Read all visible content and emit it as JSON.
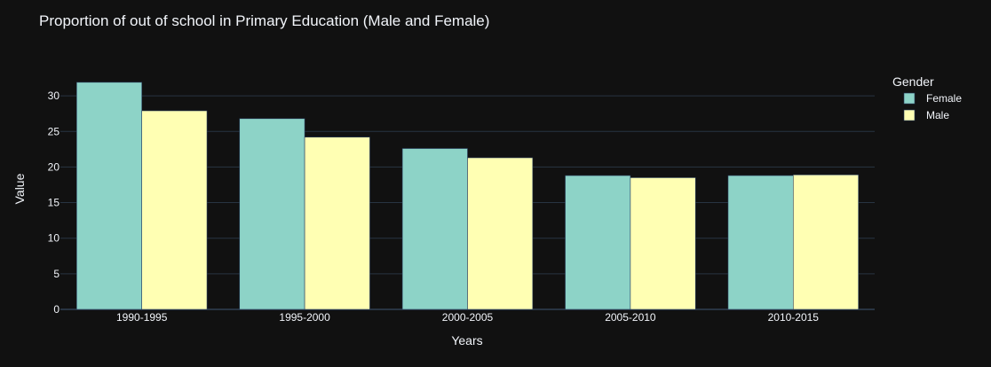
{
  "chart_data": {
    "type": "bar",
    "title": "Proportion of out of school in Primary Education (Male and Female)",
    "xlabel": "Years",
    "ylabel": "Value",
    "categories": [
      "1990-1995",
      "1995-2000",
      "2000-2005",
      "2005-2010",
      "2010-2015"
    ],
    "ylim": [
      0,
      33.5
    ],
    "yticks": [
      0,
      5,
      10,
      15,
      20,
      25,
      30
    ],
    "grid": true,
    "legend": {
      "title": "Gender",
      "placement": "top-right"
    },
    "series": [
      {
        "name": "Female",
        "color": "#8dd3c7",
        "values": [
          31.9,
          26.8,
          22.6,
          18.8,
          18.8
        ]
      },
      {
        "name": "Male",
        "color": "#ffffb3",
        "values": [
          27.9,
          24.2,
          21.3,
          18.5,
          18.9
        ]
      }
    ]
  }
}
